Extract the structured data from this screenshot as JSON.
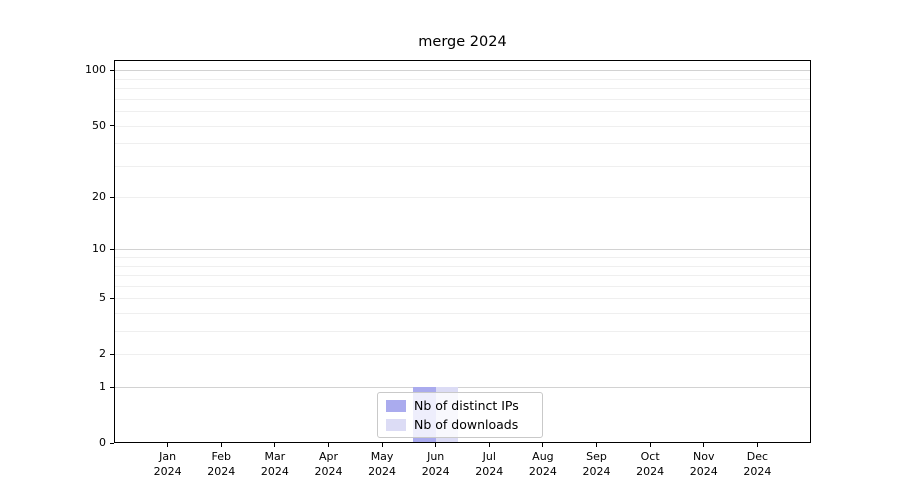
{
  "title": "merge 2024",
  "chart_data": {
    "type": "bar",
    "title": "merge 2024",
    "categories": [
      "Jan",
      "Feb",
      "Mar",
      "Apr",
      "May",
      "Jun",
      "Jul",
      "Aug",
      "Sep",
      "Oct",
      "Nov",
      "Dec"
    ],
    "x_tick_year": "2024",
    "series": [
      {
        "name": "Nb of distinct IPs",
        "color": "#aaabee",
        "values": [
          0,
          0,
          0,
          0,
          0,
          1,
          0,
          0,
          0,
          0,
          0,
          0
        ]
      },
      {
        "name": "Nb of downloads",
        "color": "#dcdcf5",
        "values": [
          0,
          0,
          0,
          0,
          0,
          1,
          0,
          0,
          0,
          0,
          0,
          0
        ]
      }
    ],
    "y_scale": "log1p",
    "ylim": [
      0,
      114
    ],
    "y_ticks": [
      0,
      1,
      2,
      5,
      10,
      20,
      50,
      100
    ],
    "y_gridlines_dark": [
      1,
      10,
      100
    ],
    "y_gridlines_light": [
      2,
      3,
      4,
      5,
      6,
      7,
      8,
      9,
      20,
      30,
      40,
      50,
      60,
      70,
      80,
      90
    ],
    "grid": true,
    "legend_position": "lower center",
    "xlabel": "",
    "ylabel": ""
  }
}
